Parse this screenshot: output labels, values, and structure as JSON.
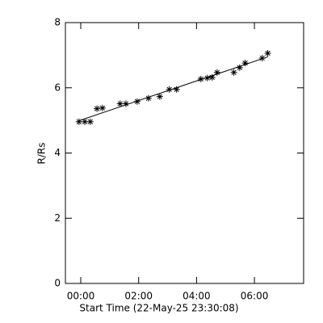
{
  "chart_data": {
    "type": "scatter",
    "xlabel": "Start Time (22-May-25 23:30:08)",
    "ylabel": "R/Rs",
    "x": [
      -0.06,
      0.14,
      0.33,
      0.56,
      0.75,
      1.36,
      1.56,
      1.95,
      2.34,
      2.73,
      3.06,
      3.31,
      4.15,
      4.37,
      4.54,
      4.71,
      5.29,
      5.49,
      5.68,
      6.27,
      6.46
    ],
    "values": [
      4.96,
      4.96,
      4.96,
      5.36,
      5.38,
      5.51,
      5.51,
      5.58,
      5.68,
      5.73,
      5.95,
      5.95,
      6.27,
      6.3,
      6.32,
      6.47,
      6.47,
      6.62,
      6.76,
      6.91,
      7.06
    ],
    "color": "#000000",
    "fit": true,
    "xlim": [
      -0.53,
      7.7
    ],
    "ylim": [
      0,
      8
    ],
    "xticks": [
      {
        "value": 0,
        "label": "00:00"
      },
      {
        "value": 2,
        "label": "02:00"
      },
      {
        "value": 4,
        "label": "04:00"
      },
      {
        "value": 6,
        "label": "06:00"
      }
    ],
    "yticks": [
      0,
      2,
      4,
      6,
      8
    ]
  }
}
